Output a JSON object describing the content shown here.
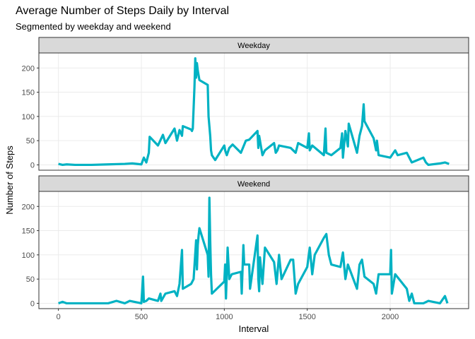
{
  "chart_data": {
    "type": "line",
    "title": "Average Number of Steps Daily by Interval",
    "subtitle": "Segmented by weekday and weekend",
    "xlabel": "Interval",
    "ylabel": "Number of Steps",
    "xlim": [
      -117.75,
      2472.75
    ],
    "xticks": [
      0,
      500,
      1000,
      1500,
      2000
    ],
    "ylim": [
      -11,
      231
    ],
    "yticks": [
      0,
      50,
      100,
      150,
      200
    ],
    "grid": true,
    "series": [
      {
        "name": "Weekday",
        "color": "#00b2c3",
        "x": [
          0,
          25,
          50,
          100,
          200,
          300,
          400,
          445,
          500,
          515,
          530,
          545,
          550,
          600,
          630,
          645,
          700,
          715,
          730,
          745,
          750,
          800,
          805,
          810,
          820,
          825,
          830,
          835,
          840,
          845,
          850,
          900,
          905,
          915,
          920,
          925,
          935,
          945,
          1000,
          1005,
          1015,
          1030,
          1050,
          1100,
          1130,
          1150,
          1200,
          1205,
          1210,
          1230,
          1245,
          1300,
          1310,
          1320,
          1330,
          1400,
          1430,
          1445,
          1500,
          1510,
          1515,
          1530,
          1600,
          1610,
          1615,
          1645,
          1700,
          1710,
          1715,
          1730,
          1745,
          1750,
          1800,
          1815,
          1830,
          1840,
          1845,
          1900,
          1915,
          1920,
          1930,
          2000,
          2030,
          2045,
          2100,
          2115,
          2130,
          2200,
          2215,
          2230,
          2300,
          2330,
          2355
        ],
        "values": [
          2,
          0,
          1,
          0,
          0,
          1,
          2,
          3,
          1,
          15,
          5,
          25,
          58,
          40,
          62,
          45,
          75,
          50,
          72,
          60,
          80,
          73,
          70,
          75,
          160,
          220,
          180,
          210,
          195,
          185,
          175,
          165,
          100,
          60,
          30,
          20,
          15,
          10,
          40,
          30,
          20,
          35,
          42,
          25,
          50,
          52,
          70,
          35,
          60,
          20,
          30,
          45,
          25,
          30,
          40,
          35,
          25,
          45,
          35,
          65,
          30,
          40,
          20,
          75,
          25,
          20,
          35,
          65,
          15,
          70,
          38,
          85,
          25,
          60,
          80,
          125,
          90,
          55,
          30,
          50,
          20,
          15,
          30,
          20,
          25,
          15,
          5,
          15,
          5,
          0,
          3,
          5,
          2
        ]
      },
      {
        "name": "Weekend",
        "color": "#00b2c3",
        "x": [
          0,
          25,
          50,
          100,
          200,
          300,
          350,
          400,
          430,
          500,
          510,
          515,
          530,
          545,
          600,
          615,
          620,
          645,
          700,
          715,
          730,
          745,
          750,
          800,
          815,
          830,
          835,
          840,
          845,
          850,
          900,
          905,
          910,
          915,
          920,
          925,
          1000,
          1005,
          1010,
          1020,
          1030,
          1045,
          1100,
          1105,
          1115,
          1120,
          1150,
          1155,
          1200,
          1205,
          1210,
          1215,
          1230,
          1245,
          1300,
          1315,
          1330,
          1345,
          1400,
          1415,
          1430,
          1445,
          1500,
          1515,
          1530,
          1545,
          1600,
          1615,
          1630,
          1645,
          1700,
          1715,
          1730,
          1745,
          1800,
          1815,
          1830,
          1845,
          1900,
          1915,
          1930,
          2000,
          2005,
          2010,
          2030,
          2100,
          2115,
          2130,
          2145,
          2200,
          2230,
          2300,
          2330,
          2345
        ],
        "values": [
          0,
          3,
          0,
          0,
          0,
          0,
          5,
          0,
          5,
          0,
          55,
          3,
          5,
          10,
          5,
          20,
          5,
          20,
          25,
          15,
          40,
          110,
          30,
          40,
          50,
          130,
          70,
          120,
          140,
          155,
          100,
          55,
          218,
          130,
          60,
          20,
          45,
          80,
          10,
          115,
          50,
          60,
          65,
          20,
          120,
          80,
          80,
          30,
          140,
          50,
          25,
          95,
          40,
          115,
          85,
          40,
          100,
          50,
          90,
          90,
          20,
          40,
          75,
          115,
          60,
          100,
          135,
          143,
          100,
          80,
          75,
          105,
          50,
          80,
          30,
          80,
          90,
          55,
          40,
          20,
          60,
          60,
          110,
          20,
          60,
          30,
          5,
          20,
          0,
          0,
          5,
          0,
          15,
          0
        ]
      }
    ]
  }
}
